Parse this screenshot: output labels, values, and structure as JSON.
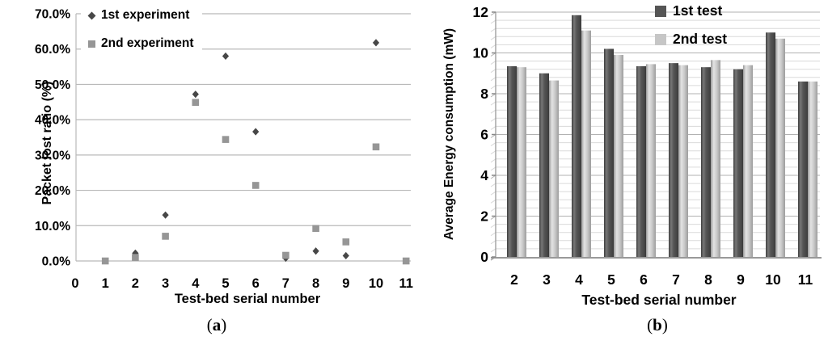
{
  "chart_data": [
    {
      "type": "scatter",
      "title": "",
      "xlabel": "Test-bed serial number",
      "ylabel": "Packet lost ratio (%)",
      "caption_open": "(",
      "caption_letter": "a",
      "caption_close": ")",
      "xlim": [
        0,
        11
      ],
      "ylim": [
        0,
        70
      ],
      "grid": "horizontal major gridlines only",
      "legend_position": "top-left inside plot",
      "x_ticks": [
        "0",
        "1",
        "2",
        "3",
        "4",
        "5",
        "6",
        "7",
        "8",
        "9",
        "10",
        "11"
      ],
      "y_ticks": [
        {
          "v": 0,
          "label": "0.0%"
        },
        {
          "v": 10,
          "label": "10.0%"
        },
        {
          "v": 20,
          "label": "20.0%"
        },
        {
          "v": 30,
          "label": "30.0%"
        },
        {
          "v": 40,
          "label": "40.0%"
        },
        {
          "v": 50,
          "label": "50.0%"
        },
        {
          "v": 60,
          "label": "60.0%"
        },
        {
          "v": 70,
          "label": "70.0%"
        }
      ],
      "series": [
        {
          "name": "1st experiment",
          "marker": "diamond",
          "color": "#474747",
          "points": [
            [
              2,
              2.2
            ],
            [
              3,
              13.0
            ],
            [
              4,
              47.2
            ],
            [
              5,
              58.0
            ],
            [
              6,
              36.6
            ],
            [
              7,
              0.8
            ],
            [
              8,
              2.8
            ],
            [
              9,
              1.5
            ],
            [
              10,
              61.8
            ]
          ]
        },
        {
          "name": "2nd experiment",
          "marker": "square",
          "color": "#969696",
          "points": [
            [
              1,
              0.0
            ],
            [
              2,
              1.0
            ],
            [
              3,
              7.0
            ],
            [
              4,
              44.9
            ],
            [
              5,
              34.4
            ],
            [
              6,
              21.4
            ],
            [
              7,
              1.6
            ],
            [
              8,
              9.2
            ],
            [
              9,
              5.4
            ],
            [
              10,
              32.3
            ],
            [
              11,
              0.0
            ]
          ]
        }
      ]
    },
    {
      "type": "bar",
      "title": "",
      "xlabel": "Test-bed serial number",
      "ylabel": "Average Energy consumption (mW)",
      "caption_open": "(",
      "caption_letter": "b",
      "caption_close": ")",
      "ylim": [
        0,
        12
      ],
      "y_major_step": 2,
      "y_minor_step": 0.4,
      "grid": "horizontal major + minor gridlines, slight 3D wall effect",
      "legend_position": "top-right inside plot",
      "categories": [
        "2",
        "3",
        "4",
        "5",
        "6",
        "7",
        "8",
        "9",
        "10",
        "11"
      ],
      "y_ticks": [
        {
          "v": 0,
          "label": "0"
        },
        {
          "v": 2,
          "label": "2"
        },
        {
          "v": 4,
          "label": "4"
        },
        {
          "v": 6,
          "label": "6"
        },
        {
          "v": 8,
          "label": "8"
        },
        {
          "v": 10,
          "label": "10"
        },
        {
          "v": 12,
          "label": "12"
        }
      ],
      "series": [
        {
          "name": "1st test",
          "color": "#555555",
          "values": [
            9.35,
            9.0,
            11.85,
            10.2,
            9.35,
            9.5,
            9.3,
            9.2,
            11.0,
            8.6
          ]
        },
        {
          "name": "2nd test",
          "color": "#c6c6c6",
          "values": [
            9.3,
            8.65,
            11.1,
            9.9,
            9.45,
            9.4,
            9.65,
            9.4,
            10.7,
            8.6
          ]
        }
      ]
    }
  ]
}
